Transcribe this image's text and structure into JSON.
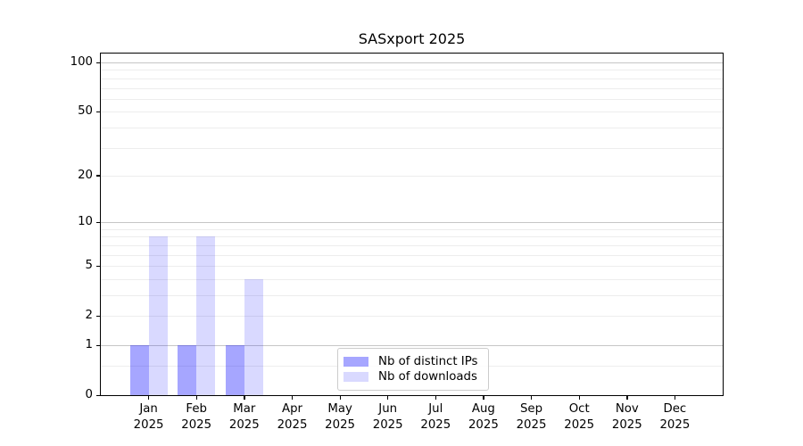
{
  "chart_data": {
    "type": "bar",
    "title": "SASxport 2025",
    "categories": [
      "Jan",
      "Feb",
      "Mar",
      "Apr",
      "May",
      "Jun",
      "Jul",
      "Aug",
      "Sep",
      "Oct",
      "Nov",
      "Dec"
    ],
    "category_year": "2025",
    "series": [
      {
        "name": "Nb of distinct IPs",
        "color": "#0000ff59",
        "values": [
          1,
          1,
          1,
          0,
          0,
          0,
          0,
          0,
          0,
          0,
          0,
          0
        ]
      },
      {
        "name": "Nb of downloads",
        "color": "#0000ff26",
        "values": [
          8,
          8,
          4,
          0,
          0,
          0,
          0,
          0,
          0,
          0,
          0,
          0
        ]
      }
    ],
    "y_scale": "log10(1+v)",
    "y_ticks": [
      0,
      1,
      2,
      5,
      10,
      20,
      50,
      100
    ],
    "y_major_gridlines": [
      1,
      10,
      100
    ],
    "y_minor_gridlines": [
      0.5,
      2,
      3,
      4,
      5,
      6,
      7,
      8,
      9,
      20,
      30,
      40,
      50,
      60,
      70,
      80,
      90
    ],
    "ylim": [
      0,
      110
    ],
    "grid": true,
    "legend_position": "lower center",
    "colors": {
      "axis": "#000000",
      "grid_major": "#c6c6c6",
      "grid_minor": "#ededed",
      "legend_border": "#cccccc",
      "background": "#ffffff"
    }
  }
}
